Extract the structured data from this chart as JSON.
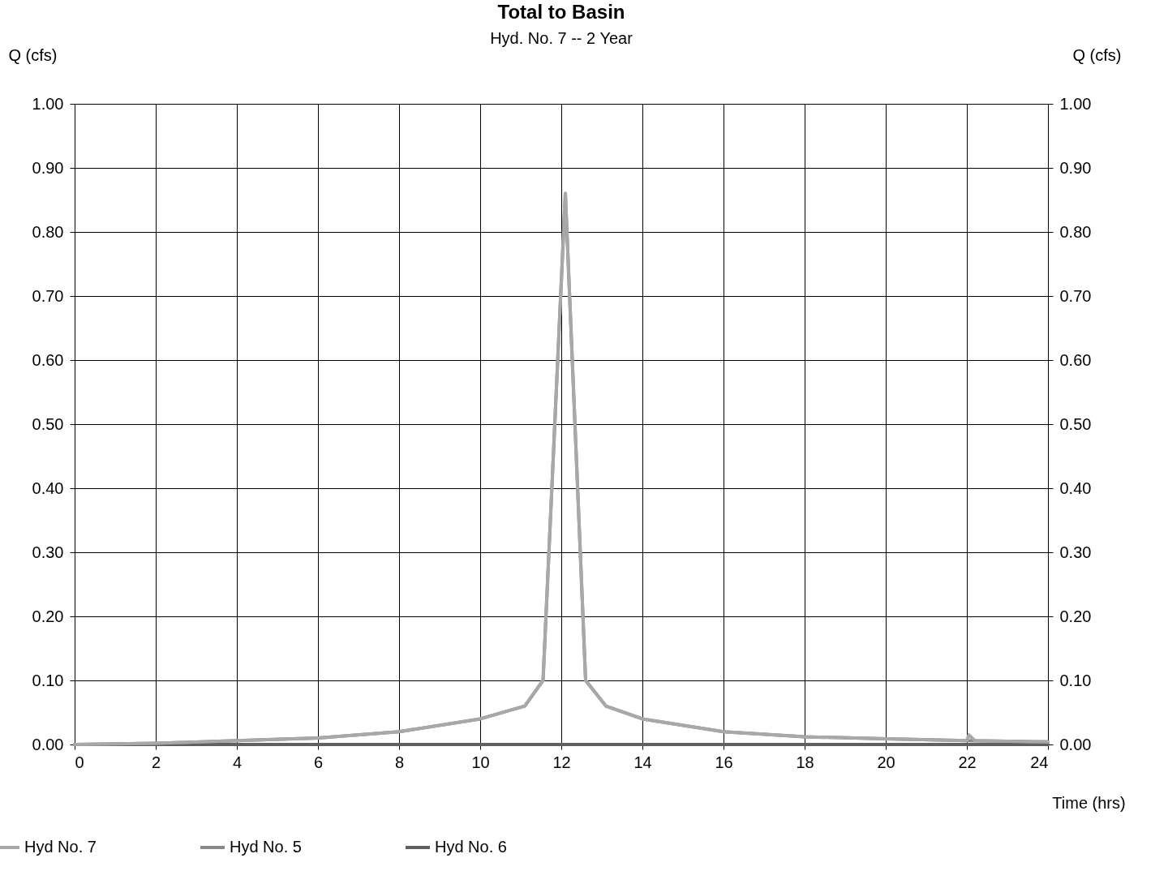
{
  "chart_data": {
    "type": "line",
    "title": "Total to Basin",
    "subtitle": "Hyd. No. 7 -- 2 Year",
    "xlabel": "Time (hrs)",
    "ylabel": "Q (cfs)",
    "y2label": "Q (cfs)",
    "xlim": [
      0,
      24
    ],
    "xticks": [
      0,
      2,
      4,
      6,
      8,
      10,
      12,
      14,
      16,
      18,
      20,
      22,
      24
    ],
    "ylim": [
      0,
      1
    ],
    "yticks": [
      {
        "value": 0,
        "label": "0.00"
      },
      {
        "value": 0.1,
        "label": "0.10"
      },
      {
        "value": 0.2,
        "label": "0.20"
      },
      {
        "value": 0.3,
        "label": "0.30"
      },
      {
        "value": 0.4,
        "label": "0.40"
      },
      {
        "value": 0.5,
        "label": "0.50"
      },
      {
        "value": 0.6,
        "label": "0.60"
      },
      {
        "value": 0.7,
        "label": "0.70"
      },
      {
        "value": 0.8,
        "label": "0.80"
      },
      {
        "value": 0.9,
        "label": "0.90"
      },
      {
        "value": 1,
        "label": "1.00"
      }
    ],
    "y2lim": [
      0,
      1
    ],
    "y2ticks": [
      {
        "value": 0,
        "label": "0.00"
      },
      {
        "value": 0.1,
        "label": "0.10"
      },
      {
        "value": 0.2,
        "label": "0.20"
      },
      {
        "value": 0.3,
        "label": "0.30"
      },
      {
        "value": 0.4,
        "label": "0.40"
      },
      {
        "value": 0.5,
        "label": "0.50"
      },
      {
        "value": 0.6,
        "label": "0.60"
      },
      {
        "value": 0.7,
        "label": "0.70"
      },
      {
        "value": 0.8,
        "label": "0.80"
      },
      {
        "value": 0.9,
        "label": "0.90"
      },
      {
        "value": 1,
        "label": "1.00"
      }
    ],
    "grid": true,
    "legend": "bottom",
    "marker": "none",
    "line_style": "solid",
    "series": [
      {
        "name": "Hyd No. 7",
        "color": "#a8a8a8",
        "x": [
          0,
          2,
          4,
          6,
          8,
          10,
          11.1,
          11.55,
          12.1,
          12.6,
          13.1,
          14,
          16,
          18,
          20,
          22,
          22.05,
          22.2,
          24
        ],
        "values": [
          0,
          0.002,
          0.006,
          0.01,
          0.02,
          0.04,
          0.06,
          0.1,
          0.86,
          0.1,
          0.06,
          0.04,
          0.02,
          0.012,
          0.009,
          0.006,
          0.015,
          0.006,
          0.004
        ]
      },
      {
        "name": "Hyd No. 5",
        "color": "#888888",
        "x": [
          0,
          2,
          4,
          6,
          8,
          10,
          11.1,
          11.55,
          12.1,
          12.6,
          13.1,
          14,
          16,
          18,
          20,
          22,
          24
        ],
        "values": [
          0,
          0.002,
          0.006,
          0.01,
          0.02,
          0.04,
          0.06,
          0.1,
          0.86,
          0.1,
          0.06,
          0.04,
          0.02,
          0.012,
          0.009,
          0.006,
          0.004
        ]
      },
      {
        "name": "Hyd No. 6",
        "color": "#606060",
        "x": [
          0,
          24
        ],
        "values": [
          0,
          0
        ]
      }
    ]
  }
}
